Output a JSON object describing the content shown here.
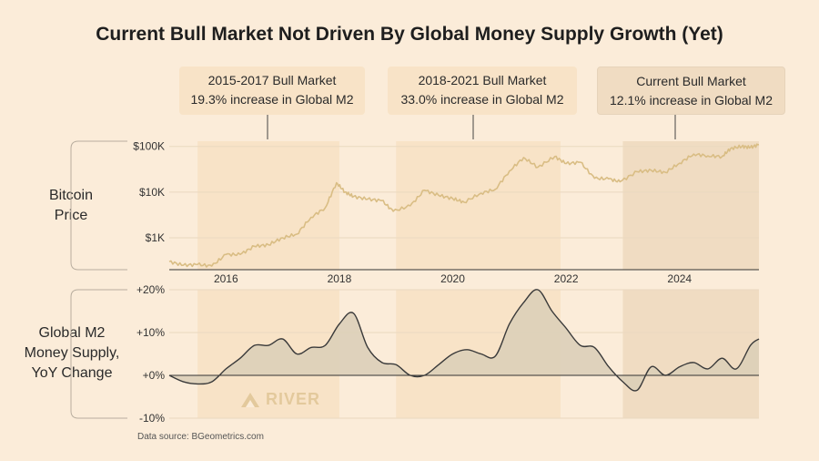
{
  "title": "Current Bull Market Not Driven By Global Money Supply Growth (Yet)",
  "callouts": [
    {
      "period": "2015-2017 Bull Market",
      "note": "19.3% increase in Global M2"
    },
    {
      "period": "2018-2021 Bull Market",
      "note": "33.0% increase in Global M2"
    },
    {
      "period": "Current Bull Market",
      "note": "12.1% increase in Global M2"
    }
  ],
  "side_labels": {
    "price": [
      "Bitcoin",
      "Price"
    ],
    "m2": [
      "Global M2",
      "Money Supply,",
      "YoY Change"
    ]
  },
  "logo_text": "RIVER",
  "source": "Data source: BGeometrics.com",
  "colors": {
    "background": "#fbecd9",
    "bull_band": "#f8e3c7",
    "current_band": "#f0dcc2",
    "btc_line": "#d9bd84",
    "m2_line": "#3a3a3a",
    "m2_fill": "#dccfb8",
    "logo": "#e3c99c"
  },
  "chart_data": [
    {
      "type": "line",
      "name": "Bitcoin Price",
      "yscale": "log",
      "ylim": [
        200,
        130000
      ],
      "xlim": [
        2015.0,
        2025.4
      ],
      "y_tick_labels": [
        "$1K",
        "$10K",
        "$100K"
      ],
      "y_ticks": [
        1000,
        10000,
        100000
      ],
      "x_tick_labels": [
        "2016",
        "2018",
        "2020",
        "2022",
        "2024"
      ],
      "x_ticks": [
        2016,
        2018,
        2020,
        2022,
        2024
      ],
      "grid": true,
      "shaded_periods": [
        [
          2015.5,
          2018.0
        ],
        [
          2019.0,
          2021.9
        ],
        [
          2023.0,
          2025.4
        ]
      ],
      "x": [
        2015.0,
        2015.25,
        2015.5,
        2015.75,
        2016.0,
        2016.25,
        2016.5,
        2016.75,
        2017.0,
        2017.25,
        2017.5,
        2017.75,
        2017.95,
        2018.1,
        2018.25,
        2018.5,
        2018.75,
        2018.95,
        2019.25,
        2019.5,
        2019.75,
        2020.0,
        2020.2,
        2020.5,
        2020.75,
        2021.0,
        2021.25,
        2021.5,
        2021.8,
        2022.0,
        2022.25,
        2022.5,
        2022.75,
        2022.95,
        2023.25,
        2023.5,
        2023.75,
        2024.0,
        2024.25,
        2024.5,
        2024.75,
        2024.9,
        2025.1,
        2025.25,
        2025.4
      ],
      "values": [
        300,
        250,
        260,
        240,
        430,
        430,
        650,
        700,
        1000,
        1200,
        2800,
        4500,
        16000,
        10000,
        8000,
        7000,
        6500,
        3800,
        5000,
        11000,
        8500,
        7200,
        6000,
        9500,
        11500,
        29000,
        57000,
        35000,
        60000,
        42000,
        45000,
        20000,
        19500,
        16800,
        28000,
        30000,
        27000,
        43000,
        68000,
        62000,
        60000,
        90000,
        100000,
        95000,
        110000
      ]
    },
    {
      "type": "area",
      "name": "Global M2 YoY Change",
      "ylim": [
        -10,
        20
      ],
      "xlim": [
        2015.0,
        2025.4
      ],
      "y_tick_labels": [
        "-10%",
        "+0%",
        "+10%",
        "+20%"
      ],
      "y_ticks": [
        -10,
        0,
        10,
        20
      ],
      "grid": true,
      "x": [
        2015.0,
        2015.25,
        2015.5,
        2015.75,
        2016.0,
        2016.25,
        2016.5,
        2016.75,
        2017.0,
        2017.25,
        2017.5,
        2017.75,
        2018.0,
        2018.25,
        2018.5,
        2018.75,
        2019.0,
        2019.25,
        2019.5,
        2019.75,
        2020.0,
        2020.25,
        2020.5,
        2020.75,
        2021.0,
        2021.25,
        2021.5,
        2021.75,
        2022.0,
        2022.25,
        2022.5,
        2022.75,
        2023.0,
        2023.25,
        2023.5,
        2023.75,
        2024.0,
        2024.25,
        2024.5,
        2024.75,
        2025.0,
        2025.25,
        2025.4
      ],
      "values": [
        0,
        -1.5,
        -2,
        -1.5,
        1.5,
        4,
        7,
        7,
        8.5,
        5,
        6.5,
        7,
        12,
        14.5,
        6.5,
        3,
        2.5,
        0,
        0,
        2.5,
        5,
        6,
        5,
        4.5,
        12,
        17,
        20,
        15,
        11,
        7,
        6.5,
        2,
        -1.5,
        -3.5,
        2,
        0,
        2,
        3,
        1.5,
        4,
        1.5,
        7,
        8.5
      ]
    }
  ]
}
